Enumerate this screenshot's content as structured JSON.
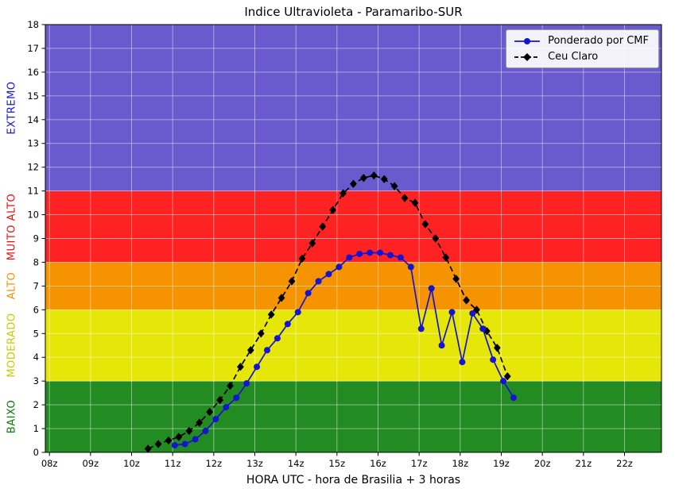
{
  "chart_data": {
    "type": "line",
    "title": "Indice Ultravioleta - Paramaribo-SUR",
    "xlabel": "HORA UTC - hora de Brasilia + 3 horas",
    "ylabel": "",
    "xlim": [
      7.9,
      22.9
    ],
    "ylim": [
      0,
      18
    ],
    "grid": true,
    "legend_position": "upper right",
    "x_ticks": {
      "values": [
        8,
        9,
        10,
        11,
        12,
        13,
        14,
        15,
        16,
        17,
        18,
        19,
        20,
        21,
        22
      ],
      "labels": [
        "08z",
        "09z",
        "10z",
        "11z",
        "12z",
        "13z",
        "14z",
        "15z",
        "16z",
        "17z",
        "18z",
        "19z",
        "20z",
        "21z",
        "22z"
      ]
    },
    "y_ticks": {
      "values": [
        0,
        1,
        2,
        3,
        4,
        5,
        6,
        7,
        8,
        9,
        10,
        11,
        12,
        13,
        14,
        15,
        16,
        17,
        18
      ],
      "labels": [
        "0",
        "1",
        "2",
        "3",
        "4",
        "5",
        "6",
        "7",
        "8",
        "9",
        "10",
        "11",
        "12",
        "13",
        "14",
        "15",
        "16",
        "17",
        "18"
      ]
    },
    "grid_color": "#ffffff",
    "bands": [
      {
        "label": "BAIXO",
        "from": 0,
        "to": 3,
        "color": "#228B22",
        "label_color": "#0a7a0a"
      },
      {
        "label": "MODERADO",
        "from": 3,
        "to": 6,
        "color": "#e6e609",
        "label_color": "#c9c900"
      },
      {
        "label": "ALTO",
        "from": 6,
        "to": 8,
        "color": "#f59300",
        "label_color": "#f59300"
      },
      {
        "label": "MUITO ALTO",
        "from": 8,
        "to": 11,
        "color": "#ff2222",
        "label_color": "#e81010"
      },
      {
        "label": "EXTREMO",
        "from": 11,
        "to": 18,
        "color": "#6a5acd",
        "label_color": "#1515e0"
      }
    ],
    "series": [
      {
        "name": "Ponderado por CMF",
        "color": "#1414d2",
        "marker": "circle",
        "line_style": "solid",
        "points": [
          [
            11.05,
            0.3
          ],
          [
            11.3,
            0.35
          ],
          [
            11.55,
            0.55
          ],
          [
            11.8,
            0.9
          ],
          [
            12.05,
            1.4
          ],
          [
            12.3,
            1.9
          ],
          [
            12.55,
            2.3
          ],
          [
            12.8,
            2.9
          ],
          [
            13.05,
            3.6
          ],
          [
            13.3,
            4.3
          ],
          [
            13.55,
            4.8
          ],
          [
            13.8,
            5.4
          ],
          [
            14.05,
            5.9
          ],
          [
            14.3,
            6.7
          ],
          [
            14.55,
            7.2
          ],
          [
            14.8,
            7.5
          ],
          [
            15.05,
            7.8
          ],
          [
            15.3,
            8.2
          ],
          [
            15.55,
            8.35
          ],
          [
            15.8,
            8.4
          ],
          [
            16.05,
            8.4
          ],
          [
            16.3,
            8.3
          ],
          [
            16.55,
            8.2
          ],
          [
            16.8,
            7.8
          ],
          [
            17.05,
            5.2
          ],
          [
            17.3,
            6.9
          ],
          [
            17.55,
            4.5
          ],
          [
            17.8,
            5.9
          ],
          [
            18.05,
            3.8
          ],
          [
            18.3,
            5.85
          ],
          [
            18.55,
            5.2
          ],
          [
            18.8,
            3.9
          ],
          [
            19.05,
            3.0
          ],
          [
            19.3,
            2.3
          ]
        ]
      },
      {
        "name": "Ceu Claro",
        "color": "#000000",
        "marker": "diamond",
        "line_style": "dashed",
        "points": [
          [
            10.4,
            0.15
          ],
          [
            10.65,
            0.35
          ],
          [
            10.9,
            0.5
          ],
          [
            11.15,
            0.65
          ],
          [
            11.4,
            0.9
          ],
          [
            11.65,
            1.25
          ],
          [
            11.9,
            1.7
          ],
          [
            12.15,
            2.2
          ],
          [
            12.4,
            2.8
          ],
          [
            12.65,
            3.6
          ],
          [
            12.9,
            4.3
          ],
          [
            13.15,
            5.0
          ],
          [
            13.4,
            5.8
          ],
          [
            13.65,
            6.5
          ],
          [
            13.9,
            7.2
          ],
          [
            14.15,
            8.15
          ],
          [
            14.4,
            8.8
          ],
          [
            14.65,
            9.5
          ],
          [
            14.9,
            10.2
          ],
          [
            15.15,
            10.9
          ],
          [
            15.4,
            11.3
          ],
          [
            15.65,
            11.55
          ],
          [
            15.9,
            11.65
          ],
          [
            16.15,
            11.5
          ],
          [
            16.4,
            11.2
          ],
          [
            16.65,
            10.7
          ],
          [
            16.9,
            10.5
          ],
          [
            17.15,
            9.6
          ],
          [
            17.4,
            9.0
          ],
          [
            17.65,
            8.2
          ],
          [
            17.9,
            7.3
          ],
          [
            18.15,
            6.4
          ],
          [
            18.4,
            6.0
          ],
          [
            18.65,
            5.1
          ],
          [
            18.9,
            4.4
          ],
          [
            19.15,
            3.2
          ]
        ]
      }
    ]
  }
}
